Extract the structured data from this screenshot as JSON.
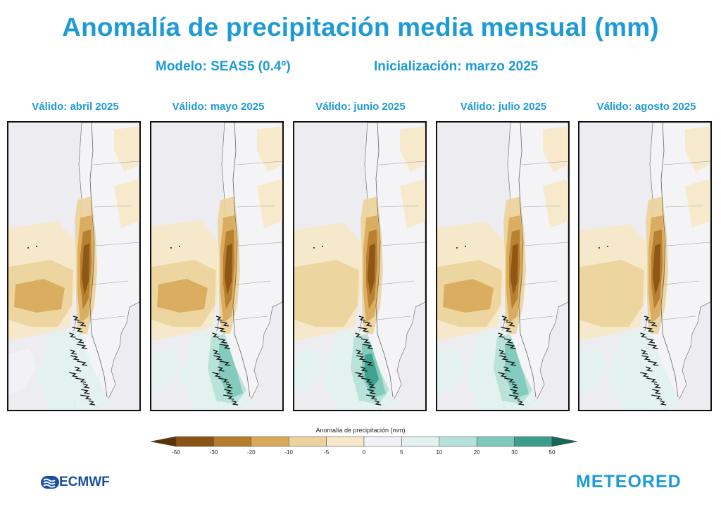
{
  "header": {
    "title": "Anomalía de precipitación media mensual (mm)",
    "model": "Modelo: SEAS5 (0.4º)",
    "initialization": "Inicialización: marzo 2025"
  },
  "panels": [
    {
      "label": "Válido: abril 2025",
      "dry": 1.0,
      "wet": 0.35
    },
    {
      "label": "Válido: mayo 2025",
      "dry": 1.1,
      "wet": 0.9
    },
    {
      "label": "Válido: junio 2025",
      "dry": 0.9,
      "wet": 1.2
    },
    {
      "label": "Válido: julio 2025",
      "dry": 1.0,
      "wet": 1.0
    },
    {
      "label": "Válido: agosto 2025",
      "dry": 0.8,
      "wet": 0.6
    }
  ],
  "colorbar": {
    "label": "Anomalía de precipitación (mm)",
    "ticks": [
      "-50",
      "-30",
      "-20",
      "-10",
      "-5",
      "0",
      "5",
      "10",
      "20",
      "30",
      "50"
    ],
    "colors": [
      "#5c3208",
      "#8a5415",
      "#b57c2c",
      "#d9a95a",
      "#ecd29c",
      "#f6e8c8",
      "#f2f2f6",
      "#e3f2ef",
      "#b5e1d8",
      "#7fc9bb",
      "#3b9e8c",
      "#17675a"
    ]
  },
  "logos": {
    "ecmwf": "ECMWF",
    "meteored": "METEORED"
  }
}
